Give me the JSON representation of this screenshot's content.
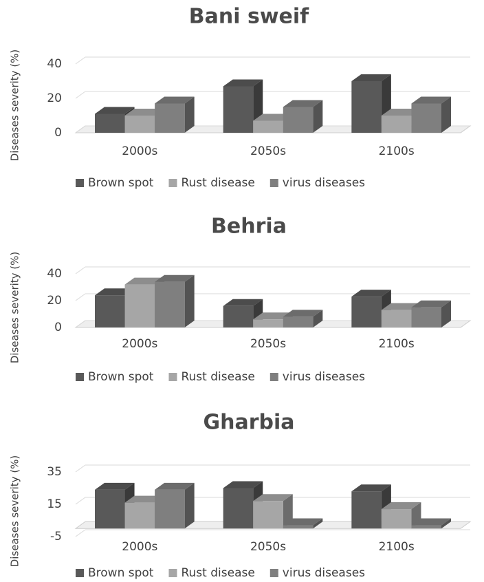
{
  "chart_data": [
    {
      "type": "bar3d",
      "title": "Bani sweif",
      "y_label": "Diseases severity (%)",
      "categories": [
        "2000s",
        "2050s",
        "2100s"
      ],
      "series": [
        {
          "name": "Brown spot",
          "color": "#595959",
          "values": [
            11,
            27,
            30
          ]
        },
        {
          "name": "Rust disease",
          "color": "#a6a6a6",
          "values": [
            10,
            7,
            10
          ]
        },
        {
          "name": "virus diseases",
          "color": "#7f7f7f",
          "values": [
            17,
            15,
            17
          ]
        }
      ],
      "ylim": [
        0,
        40
      ],
      "yticks": [
        0,
        20,
        40
      ],
      "grid": true,
      "legend": "bottom"
    },
    {
      "type": "bar3d",
      "title": "Behria",
      "y_label": "Diseases severity (%)",
      "categories": [
        "2000s",
        "2050s",
        "2100s"
      ],
      "series": [
        {
          "name": "Brown spot",
          "color": "#595959",
          "values": [
            24,
            16,
            23
          ]
        },
        {
          "name": "Rust disease",
          "color": "#a6a6a6",
          "values": [
            32,
            6,
            13
          ]
        },
        {
          "name": "virus diseases",
          "color": "#7f7f7f",
          "values": [
            34,
            8,
            15
          ]
        }
      ],
      "ylim": [
        0,
        40
      ],
      "yticks": [
        0,
        20,
        40
      ],
      "grid": true,
      "legend": "bottom"
    },
    {
      "type": "bar3d",
      "title": "Gharbia",
      "y_label": "Diseases severity (%)",
      "categories": [
        "2000s",
        "2050s",
        "2100s"
      ],
      "series": [
        {
          "name": "Brown spot",
          "color": "#595959",
          "values": [
            24,
            25,
            23
          ]
        },
        {
          "name": "Rust disease",
          "color": "#a6a6a6",
          "values": [
            16,
            17,
            12
          ]
        },
        {
          "name": "virus diseases",
          "color": "#7f7f7f",
          "values": [
            24,
            2,
            2
          ]
        }
      ],
      "ylim": [
        -5,
        35
      ],
      "yticks": [
        -5,
        15,
        35
      ],
      "grid": true,
      "legend": "bottom"
    }
  ]
}
